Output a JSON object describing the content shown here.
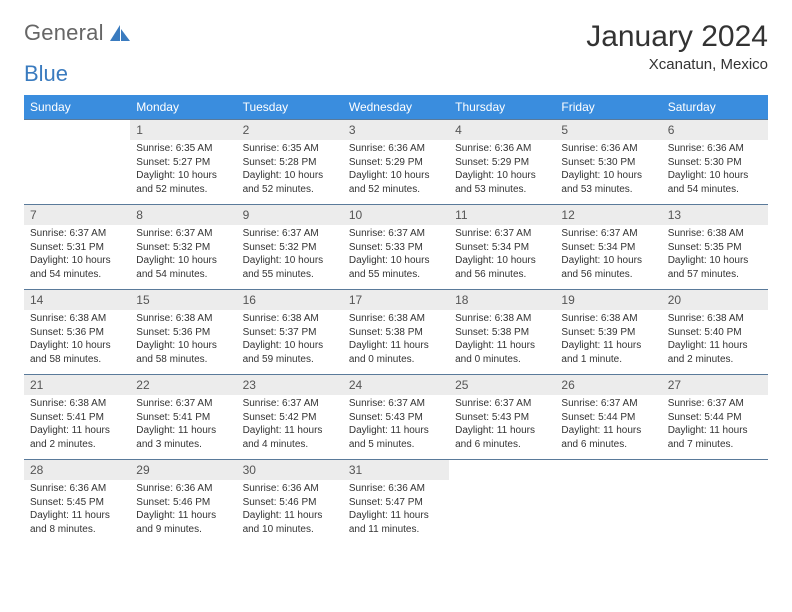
{
  "logo": {
    "text1": "General",
    "text2": "Blue"
  },
  "title": "January 2024",
  "location": "Xcanatun, Mexico",
  "colors": {
    "header_bg": "#3a8dde",
    "header_text": "#ffffff",
    "daynum_bg": "#ececec",
    "daynum_text": "#555555",
    "border": "#5a7a9a",
    "body_text": "#333333",
    "logo_blue": "#3a7bbf",
    "logo_gray": "#666666"
  },
  "fonts": {
    "title_size": 30,
    "location_size": 15,
    "dow_size": 12,
    "daynum_size": 12,
    "cell_size": 10
  },
  "days_of_week": [
    "Sunday",
    "Monday",
    "Tuesday",
    "Wednesday",
    "Thursday",
    "Friday",
    "Saturday"
  ],
  "weeks": [
    {
      "nums": [
        "",
        "1",
        "2",
        "3",
        "4",
        "5",
        "6"
      ],
      "cells": [
        null,
        {
          "sunrise": "6:35 AM",
          "sunset": "5:27 PM",
          "daylight": "10 hours and 52 minutes."
        },
        {
          "sunrise": "6:35 AM",
          "sunset": "5:28 PM",
          "daylight": "10 hours and 52 minutes."
        },
        {
          "sunrise": "6:36 AM",
          "sunset": "5:29 PM",
          "daylight": "10 hours and 52 minutes."
        },
        {
          "sunrise": "6:36 AM",
          "sunset": "5:29 PM",
          "daylight": "10 hours and 53 minutes."
        },
        {
          "sunrise": "6:36 AM",
          "sunset": "5:30 PM",
          "daylight": "10 hours and 53 minutes."
        },
        {
          "sunrise": "6:36 AM",
          "sunset": "5:30 PM",
          "daylight": "10 hours and 54 minutes."
        }
      ]
    },
    {
      "nums": [
        "7",
        "8",
        "9",
        "10",
        "11",
        "12",
        "13"
      ],
      "cells": [
        {
          "sunrise": "6:37 AM",
          "sunset": "5:31 PM",
          "daylight": "10 hours and 54 minutes."
        },
        {
          "sunrise": "6:37 AM",
          "sunset": "5:32 PM",
          "daylight": "10 hours and 54 minutes."
        },
        {
          "sunrise": "6:37 AM",
          "sunset": "5:32 PM",
          "daylight": "10 hours and 55 minutes."
        },
        {
          "sunrise": "6:37 AM",
          "sunset": "5:33 PM",
          "daylight": "10 hours and 55 minutes."
        },
        {
          "sunrise": "6:37 AM",
          "sunset": "5:34 PM",
          "daylight": "10 hours and 56 minutes."
        },
        {
          "sunrise": "6:37 AM",
          "sunset": "5:34 PM",
          "daylight": "10 hours and 56 minutes."
        },
        {
          "sunrise": "6:38 AM",
          "sunset": "5:35 PM",
          "daylight": "10 hours and 57 minutes."
        }
      ]
    },
    {
      "nums": [
        "14",
        "15",
        "16",
        "17",
        "18",
        "19",
        "20"
      ],
      "cells": [
        {
          "sunrise": "6:38 AM",
          "sunset": "5:36 PM",
          "daylight": "10 hours and 58 minutes."
        },
        {
          "sunrise": "6:38 AM",
          "sunset": "5:36 PM",
          "daylight": "10 hours and 58 minutes."
        },
        {
          "sunrise": "6:38 AM",
          "sunset": "5:37 PM",
          "daylight": "10 hours and 59 minutes."
        },
        {
          "sunrise": "6:38 AM",
          "sunset": "5:38 PM",
          "daylight": "11 hours and 0 minutes."
        },
        {
          "sunrise": "6:38 AM",
          "sunset": "5:38 PM",
          "daylight": "11 hours and 0 minutes."
        },
        {
          "sunrise": "6:38 AM",
          "sunset": "5:39 PM",
          "daylight": "11 hours and 1 minute."
        },
        {
          "sunrise": "6:38 AM",
          "sunset": "5:40 PM",
          "daylight": "11 hours and 2 minutes."
        }
      ]
    },
    {
      "nums": [
        "21",
        "22",
        "23",
        "24",
        "25",
        "26",
        "27"
      ],
      "cells": [
        {
          "sunrise": "6:38 AM",
          "sunset": "5:41 PM",
          "daylight": "11 hours and 2 minutes."
        },
        {
          "sunrise": "6:37 AM",
          "sunset": "5:41 PM",
          "daylight": "11 hours and 3 minutes."
        },
        {
          "sunrise": "6:37 AM",
          "sunset": "5:42 PM",
          "daylight": "11 hours and 4 minutes."
        },
        {
          "sunrise": "6:37 AM",
          "sunset": "5:43 PM",
          "daylight": "11 hours and 5 minutes."
        },
        {
          "sunrise": "6:37 AM",
          "sunset": "5:43 PM",
          "daylight": "11 hours and 6 minutes."
        },
        {
          "sunrise": "6:37 AM",
          "sunset": "5:44 PM",
          "daylight": "11 hours and 6 minutes."
        },
        {
          "sunrise": "6:37 AM",
          "sunset": "5:44 PM",
          "daylight": "11 hours and 7 minutes."
        }
      ]
    },
    {
      "nums": [
        "28",
        "29",
        "30",
        "31",
        "",
        "",
        ""
      ],
      "cells": [
        {
          "sunrise": "6:36 AM",
          "sunset": "5:45 PM",
          "daylight": "11 hours and 8 minutes."
        },
        {
          "sunrise": "6:36 AM",
          "sunset": "5:46 PM",
          "daylight": "11 hours and 9 minutes."
        },
        {
          "sunrise": "6:36 AM",
          "sunset": "5:46 PM",
          "daylight": "11 hours and 10 minutes."
        },
        {
          "sunrise": "6:36 AM",
          "sunset": "5:47 PM",
          "daylight": "11 hours and 11 minutes."
        },
        null,
        null,
        null
      ]
    }
  ],
  "labels": {
    "sunrise": "Sunrise: ",
    "sunset": "Sunset: ",
    "daylight": "Daylight: "
  }
}
